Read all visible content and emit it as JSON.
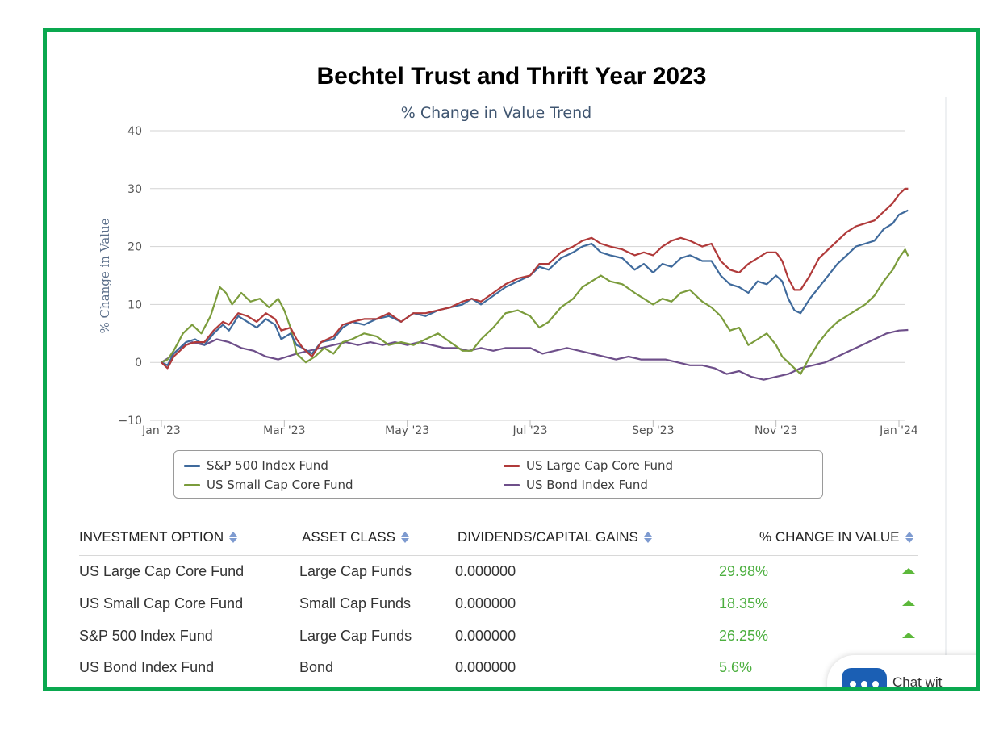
{
  "page": {
    "title": "Bechtel Trust and Thrift Year 2023"
  },
  "chart_data": {
    "type": "line",
    "title": "% Change in Value Trend",
    "xlabel": "",
    "ylabel": "% Change in Value",
    "ylim": [
      -10,
      40
    ],
    "yticks": [
      "40",
      "30",
      "20",
      "10",
      "0",
      "−10"
    ],
    "ytick_values": [
      40,
      30,
      20,
      10,
      0,
      -10
    ],
    "xlim": [
      0,
      12
    ],
    "xticks": [
      "Jan '23",
      "Mar '23",
      "May '23",
      "Jul '23",
      "Sep '23",
      "Nov '23",
      "Jan '24"
    ],
    "xtick_values": [
      0,
      2,
      4,
      6,
      8,
      10,
      12
    ],
    "grid": true,
    "legend_position": "bottom",
    "series": [
      {
        "name": "S&P 500 Index Fund",
        "color": "#3f6a9c",
        "points": [
          [
            0,
            0
          ],
          [
            0.1,
            -0.5
          ],
          [
            0.2,
            1.5
          ],
          [
            0.4,
            3.5
          ],
          [
            0.55,
            4
          ],
          [
            0.7,
            3
          ],
          [
            0.85,
            5
          ],
          [
            1,
            6.5
          ],
          [
            1.1,
            5.5
          ],
          [
            1.25,
            8
          ],
          [
            1.4,
            7
          ],
          [
            1.55,
            6
          ],
          [
            1.7,
            7.5
          ],
          [
            1.85,
            6.5
          ],
          [
            1.95,
            4
          ],
          [
            2.1,
            5
          ],
          [
            2.2,
            3
          ],
          [
            2.3,
            2.5
          ],
          [
            2.45,
            1.5
          ],
          [
            2.6,
            3.5
          ],
          [
            2.8,
            4
          ],
          [
            2.95,
            6
          ],
          [
            3.1,
            7
          ],
          [
            3.3,
            6.5
          ],
          [
            3.5,
            7.5
          ],
          [
            3.7,
            8
          ],
          [
            3.9,
            7
          ],
          [
            4.1,
            8.5
          ],
          [
            4.3,
            8
          ],
          [
            4.5,
            9
          ],
          [
            4.7,
            9.5
          ],
          [
            4.9,
            10
          ],
          [
            5.05,
            11
          ],
          [
            5.2,
            10
          ],
          [
            5.4,
            11.5
          ],
          [
            5.6,
            13
          ],
          [
            5.8,
            14
          ],
          [
            6,
            15
          ],
          [
            6.15,
            16.5
          ],
          [
            6.3,
            16
          ],
          [
            6.5,
            18
          ],
          [
            6.7,
            19
          ],
          [
            6.85,
            20
          ],
          [
            7,
            20.5
          ],
          [
            7.15,
            19
          ],
          [
            7.3,
            18.5
          ],
          [
            7.5,
            18
          ],
          [
            7.7,
            16
          ],
          [
            7.85,
            17
          ],
          [
            8,
            15.5
          ],
          [
            8.15,
            17
          ],
          [
            8.3,
            16.5
          ],
          [
            8.45,
            18
          ],
          [
            8.6,
            18.5
          ],
          [
            8.8,
            17.5
          ],
          [
            8.95,
            17.5
          ],
          [
            9.1,
            15
          ],
          [
            9.25,
            13.5
          ],
          [
            9.4,
            13
          ],
          [
            9.55,
            12
          ],
          [
            9.7,
            14
          ],
          [
            9.85,
            13.5
          ],
          [
            10,
            15
          ],
          [
            10.1,
            14
          ],
          [
            10.2,
            11
          ],
          [
            10.3,
            9
          ],
          [
            10.4,
            8.5
          ],
          [
            10.55,
            11
          ],
          [
            10.7,
            13
          ],
          [
            10.85,
            15
          ],
          [
            11,
            17
          ],
          [
            11.15,
            18.5
          ],
          [
            11.3,
            20
          ],
          [
            11.45,
            20.5
          ],
          [
            11.6,
            21
          ],
          [
            11.75,
            23
          ],
          [
            11.9,
            24
          ],
          [
            12,
            25.5
          ],
          [
            12.1,
            26
          ],
          [
            12.15,
            26.25
          ]
        ]
      },
      {
        "name": "US Large Cap Core Fund",
        "color": "#b03a3a",
        "points": [
          [
            0,
            0
          ],
          [
            0.1,
            -1
          ],
          [
            0.2,
            1
          ],
          [
            0.4,
            3
          ],
          [
            0.55,
            3.5
          ],
          [
            0.7,
            3.5
          ],
          [
            0.85,
            5.5
          ],
          [
            1,
            7
          ],
          [
            1.1,
            6.5
          ],
          [
            1.25,
            8.5
          ],
          [
            1.4,
            8
          ],
          [
            1.55,
            7
          ],
          [
            1.7,
            8.5
          ],
          [
            1.85,
            7.5
          ],
          [
            1.95,
            5.5
          ],
          [
            2.1,
            6
          ],
          [
            2.2,
            4
          ],
          [
            2.3,
            2.5
          ],
          [
            2.45,
            1
          ],
          [
            2.6,
            3.5
          ],
          [
            2.8,
            4.5
          ],
          [
            2.95,
            6.5
          ],
          [
            3.1,
            7
          ],
          [
            3.3,
            7.5
          ],
          [
            3.5,
            7.5
          ],
          [
            3.7,
            8.5
          ],
          [
            3.9,
            7
          ],
          [
            4.1,
            8.5
          ],
          [
            4.3,
            8.5
          ],
          [
            4.5,
            9
          ],
          [
            4.7,
            9.5
          ],
          [
            4.9,
            10.5
          ],
          [
            5.05,
            11
          ],
          [
            5.2,
            10.5
          ],
          [
            5.4,
            12
          ],
          [
            5.6,
            13.5
          ],
          [
            5.8,
            14.5
          ],
          [
            6,
            15
          ],
          [
            6.15,
            17
          ],
          [
            6.3,
            17
          ],
          [
            6.5,
            19
          ],
          [
            6.7,
            20
          ],
          [
            6.85,
            21
          ],
          [
            7,
            21.5
          ],
          [
            7.15,
            20.5
          ],
          [
            7.3,
            20
          ],
          [
            7.5,
            19.5
          ],
          [
            7.7,
            18.5
          ],
          [
            7.85,
            19
          ],
          [
            8,
            18.5
          ],
          [
            8.15,
            20
          ],
          [
            8.3,
            21
          ],
          [
            8.45,
            21.5
          ],
          [
            8.6,
            21
          ],
          [
            8.8,
            20
          ],
          [
            8.95,
            20.5
          ],
          [
            9.1,
            17.5
          ],
          [
            9.25,
            16
          ],
          [
            9.4,
            15.5
          ],
          [
            9.55,
            17
          ],
          [
            9.7,
            18
          ],
          [
            9.85,
            19
          ],
          [
            10,
            19
          ],
          [
            10.1,
            17.5
          ],
          [
            10.2,
            14.5
          ],
          [
            10.3,
            12.5
          ],
          [
            10.4,
            12.5
          ],
          [
            10.55,
            15
          ],
          [
            10.7,
            18
          ],
          [
            10.85,
            19.5
          ],
          [
            11,
            21
          ],
          [
            11.15,
            22.5
          ],
          [
            11.3,
            23.5
          ],
          [
            11.45,
            24
          ],
          [
            11.6,
            24.5
          ],
          [
            11.75,
            26
          ],
          [
            11.9,
            27.5
          ],
          [
            12,
            29
          ],
          [
            12.1,
            30
          ],
          [
            12.15,
            29.98
          ]
        ]
      },
      {
        "name": "US Small Cap Core Fund",
        "color": "#7b9c3c",
        "points": [
          [
            0,
            0
          ],
          [
            0.1,
            0.5
          ],
          [
            0.2,
            2
          ],
          [
            0.35,
            5
          ],
          [
            0.5,
            6.5
          ],
          [
            0.65,
            5
          ],
          [
            0.8,
            8
          ],
          [
            0.95,
            13
          ],
          [
            1.05,
            12
          ],
          [
            1.15,
            10
          ],
          [
            1.3,
            12
          ],
          [
            1.45,
            10.5
          ],
          [
            1.6,
            11
          ],
          [
            1.75,
            9.5
          ],
          [
            1.9,
            11
          ],
          [
            2,
            9
          ],
          [
            2.1,
            6
          ],
          [
            2.2,
            1.5
          ],
          [
            2.35,
            0
          ],
          [
            2.5,
            1
          ],
          [
            2.65,
            2.5
          ],
          [
            2.8,
            1.5
          ],
          [
            2.95,
            3.5
          ],
          [
            3.1,
            4
          ],
          [
            3.3,
            5
          ],
          [
            3.5,
            4.5
          ],
          [
            3.7,
            3
          ],
          [
            3.9,
            3.5
          ],
          [
            4.1,
            3
          ],
          [
            4.3,
            4
          ],
          [
            4.5,
            5
          ],
          [
            4.7,
            3.5
          ],
          [
            4.9,
            2
          ],
          [
            5.05,
            2
          ],
          [
            5.2,
            4
          ],
          [
            5.4,
            6
          ],
          [
            5.6,
            8.5
          ],
          [
            5.8,
            9
          ],
          [
            6,
            8
          ],
          [
            6.15,
            6
          ],
          [
            6.3,
            7
          ],
          [
            6.5,
            9.5
          ],
          [
            6.7,
            11
          ],
          [
            6.85,
            13
          ],
          [
            7,
            14
          ],
          [
            7.15,
            15
          ],
          [
            7.3,
            14
          ],
          [
            7.5,
            13.5
          ],
          [
            7.7,
            12
          ],
          [
            7.85,
            11
          ],
          [
            8,
            10
          ],
          [
            8.15,
            11
          ],
          [
            8.3,
            10.5
          ],
          [
            8.45,
            12
          ],
          [
            8.6,
            12.5
          ],
          [
            8.8,
            10.5
          ],
          [
            8.95,
            9.5
          ],
          [
            9.1,
            8
          ],
          [
            9.25,
            5.5
          ],
          [
            9.4,
            6
          ],
          [
            9.55,
            3
          ],
          [
            9.7,
            4
          ],
          [
            9.85,
            5
          ],
          [
            10,
            3
          ],
          [
            10.1,
            1
          ],
          [
            10.2,
            0
          ],
          [
            10.3,
            -1
          ],
          [
            10.4,
            -2
          ],
          [
            10.55,
            1
          ],
          [
            10.7,
            3.5
          ],
          [
            10.85,
            5.5
          ],
          [
            11,
            7
          ],
          [
            11.15,
            8
          ],
          [
            11.3,
            9
          ],
          [
            11.45,
            10
          ],
          [
            11.6,
            11.5
          ],
          [
            11.75,
            14
          ],
          [
            11.9,
            16
          ],
          [
            12,
            18
          ],
          [
            12.1,
            19.5
          ],
          [
            12.15,
            18.35
          ]
        ]
      },
      {
        "name": "US Bond Index Fund",
        "color": "#6e4f8a",
        "points": [
          [
            0,
            0
          ],
          [
            0.15,
            1
          ],
          [
            0.3,
            2.5
          ],
          [
            0.5,
            3.5
          ],
          [
            0.7,
            3
          ],
          [
            0.9,
            4
          ],
          [
            1.1,
            3.5
          ],
          [
            1.3,
            2.5
          ],
          [
            1.5,
            2
          ],
          [
            1.7,
            1
          ],
          [
            1.9,
            0.5
          ],
          [
            2.05,
            1
          ],
          [
            2.2,
            1.5
          ],
          [
            2.4,
            2
          ],
          [
            2.6,
            2.5
          ],
          [
            2.8,
            3
          ],
          [
            3,
            3.5
          ],
          [
            3.2,
            3
          ],
          [
            3.4,
            3.5
          ],
          [
            3.6,
            3
          ],
          [
            3.8,
            3.5
          ],
          [
            4,
            3
          ],
          [
            4.2,
            3.5
          ],
          [
            4.4,
            3
          ],
          [
            4.6,
            2.5
          ],
          [
            4.8,
            2.5
          ],
          [
            5,
            2
          ],
          [
            5.2,
            2.5
          ],
          [
            5.4,
            2
          ],
          [
            5.6,
            2.5
          ],
          [
            5.8,
            2.5
          ],
          [
            6,
            2.5
          ],
          [
            6.2,
            1.5
          ],
          [
            6.4,
            2
          ],
          [
            6.6,
            2.5
          ],
          [
            6.8,
            2
          ],
          [
            7,
            1.5
          ],
          [
            7.2,
            1
          ],
          [
            7.4,
            0.5
          ],
          [
            7.6,
            1
          ],
          [
            7.8,
            0.5
          ],
          [
            8,
            0.5
          ],
          [
            8.2,
            0.5
          ],
          [
            8.4,
            0
          ],
          [
            8.6,
            -0.5
          ],
          [
            8.8,
            -0.5
          ],
          [
            9,
            -1
          ],
          [
            9.2,
            -2
          ],
          [
            9.4,
            -1.5
          ],
          [
            9.6,
            -2.5
          ],
          [
            9.8,
            -3
          ],
          [
            10,
            -2.5
          ],
          [
            10.2,
            -2
          ],
          [
            10.4,
            -1
          ],
          [
            10.6,
            -0.5
          ],
          [
            10.8,
            0
          ],
          [
            11,
            1
          ],
          [
            11.2,
            2
          ],
          [
            11.4,
            3
          ],
          [
            11.6,
            4
          ],
          [
            11.8,
            5
          ],
          [
            12,
            5.5
          ],
          [
            12.15,
            5.6
          ]
        ]
      }
    ]
  },
  "table": {
    "headers": [
      "INVESTMENT OPTION",
      "ASSET CLASS",
      "DIVIDENDS/CAPITAL GAINS",
      "% CHANGE IN VALUE"
    ],
    "rows": [
      [
        "US Large Cap Core Fund",
        "Large Cap Funds",
        "0.000000",
        "29.98%"
      ],
      [
        "US Small Cap Core Fund",
        "Small Cap Funds",
        "0.000000",
        "18.35%"
      ],
      [
        "S&P 500 Index Fund",
        "Large Cap Funds",
        "0.000000",
        "26.25%"
      ],
      [
        "US Bond Index Fund",
        "Bond",
        "0.000000",
        "5.6%"
      ]
    ]
  },
  "chat": {
    "label": "Chat wit"
  }
}
